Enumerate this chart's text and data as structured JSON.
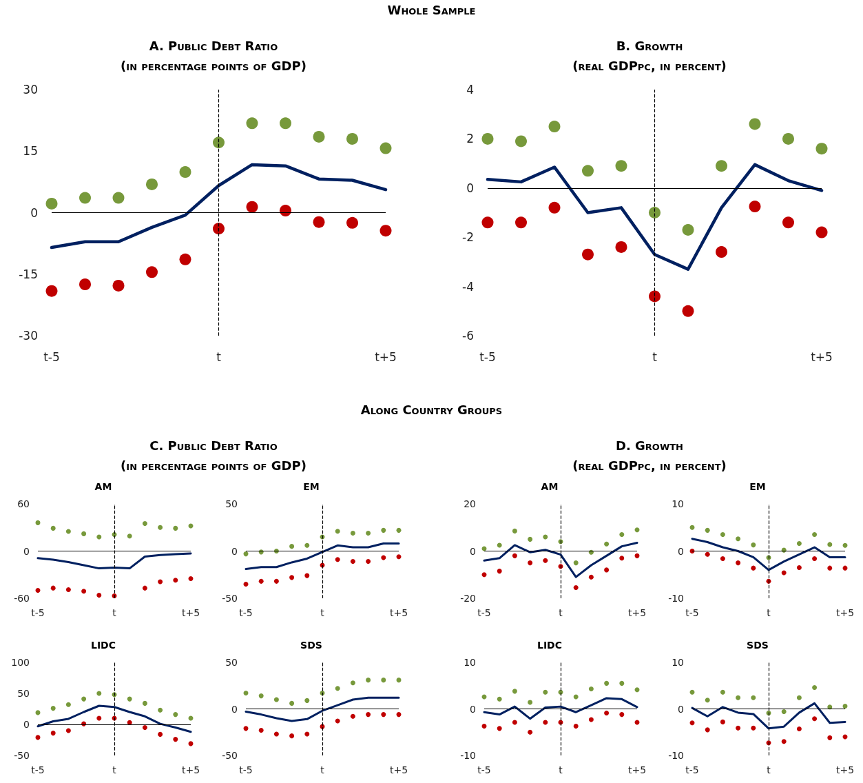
{
  "chart_data": [
    {
      "type": "line",
      "title": "A. Public Debt Ratio",
      "subtitle": "(in percentage points of GDP)",
      "annotations": [
        "Whole Sample"
      ],
      "categories": [
        "t-5",
        null,
        null,
        null,
        null,
        "t",
        null,
        null,
        null,
        null,
        "t+5"
      ],
      "ylim": [
        -30,
        30
      ],
      "yticks": [
        -30,
        -15,
        0,
        15,
        30
      ],
      "ref_lines": [
        {
          "axis": "y",
          "value": 0,
          "color": "#000000",
          "line_style": "solid"
        },
        {
          "axis": "x",
          "value": "t",
          "color": "#000000",
          "line_style": "dashed"
        }
      ],
      "series": [
        {
          "type": "scatter",
          "marker": "circle",
          "color": "#77993b",
          "values": [
            2.2,
            3.6,
            3.6,
            6.9,
            9.9,
            17.1,
            21.8,
            21.8,
            18.5,
            18,
            15.7
          ]
        },
        {
          "type": "line",
          "marker": "none",
          "line_style": "solid",
          "color": "#002060",
          "values": [
            -8.5,
            -7.1,
            -7.1,
            -3.6,
            -0.6,
            6.6,
            11.7,
            11.4,
            8.2,
            7.9,
            5.6
          ]
        },
        {
          "type": "scatter",
          "marker": "circle",
          "color": "#c00000",
          "values": [
            -19.1,
            -17.5,
            -17.8,
            -14.5,
            -11.4,
            -3.9,
            1.4,
            0.5,
            -2.3,
            -2.5,
            -4.4
          ]
        }
      ]
    },
    {
      "type": "line",
      "title": "B. Growth",
      "subtitle": "(real GDPpc, in percent)",
      "categories": [
        "t-5",
        null,
        null,
        null,
        null,
        "t",
        null,
        null,
        null,
        null,
        "t+5"
      ],
      "ylim": [
        -6,
        4
      ],
      "yticks": [
        -6,
        -4,
        -2,
        0,
        2,
        4
      ],
      "ref_lines": [
        {
          "axis": "y",
          "value": 0,
          "color": "#000000",
          "line_style": "solid"
        },
        {
          "axis": "x",
          "value": "t",
          "color": "#000000",
          "line_style": "dashed"
        }
      ],
      "series": [
        {
          "type": "scatter",
          "marker": "circle",
          "color": "#77993b",
          "values": [
            2.0,
            1.9,
            2.5,
            0.7,
            0.9,
            -1.0,
            -1.7,
            0.9,
            2.6,
            2.0,
            1.6
          ]
        },
        {
          "type": "line",
          "marker": "none",
          "line_style": "solid",
          "color": "#002060",
          "values": [
            0.35,
            0.25,
            0.85,
            -1.0,
            -0.8,
            -2.7,
            -3.3,
            -0.8,
            0.95,
            0.3,
            -0.1
          ]
        },
        {
          "type": "scatter",
          "marker": "circle",
          "color": "#c00000",
          "values": [
            -1.4,
            -1.4,
            -0.8,
            -2.7,
            -2.4,
            -4.4,
            -5.0,
            -2.6,
            -0.75,
            -1.4,
            -1.8
          ]
        }
      ]
    },
    {
      "type": "line",
      "title": "AM",
      "annotations": [
        "Along Country Groups",
        "C. Public Debt Ratio",
        "(in percentage points of GDP)"
      ],
      "categories": [
        "t-5",
        null,
        null,
        null,
        null,
        "t",
        null,
        null,
        null,
        null,
        "t+5"
      ],
      "ylim": [
        -60,
        60
      ],
      "yticks": [
        -60,
        0,
        60
      ],
      "ref_lines": [
        {
          "axis": "y",
          "value": 0,
          "color": "#000000",
          "line_style": "solid"
        },
        {
          "axis": "x",
          "value": "t",
          "color": "#000000",
          "line_style": "dashed"
        }
      ],
      "series": [
        {
          "type": "scatter",
          "marker": "circle",
          "color": "#77993b",
          "values": [
            36,
            29,
            25,
            22,
            18,
            21,
            19,
            35,
            30,
            29,
            32
          ]
        },
        {
          "type": "line",
          "marker": "none",
          "line_style": "solid",
          "color": "#002060",
          "values": [
            -9,
            -11,
            -14,
            -18,
            -22,
            -21,
            -22,
            -7,
            -5,
            -4,
            -3
          ]
        },
        {
          "type": "scatter",
          "marker": "circle",
          "color": "#c00000",
          "values": [
            -50,
            -47,
            -49,
            -51,
            -56,
            -57,
            null,
            -47,
            -39,
            -37,
            -35
          ]
        }
      ]
    },
    {
      "type": "line",
      "title": "EM",
      "categories": [
        "t-5",
        null,
        null,
        null,
        null,
        "t",
        null,
        null,
        null,
        null,
        "t+5"
      ],
      "ylim": [
        -50,
        50
      ],
      "yticks": [
        -50,
        0,
        50
      ],
      "ref_lines": [
        {
          "axis": "y",
          "value": 0,
          "color": "#000000",
          "line_style": "solid"
        },
        {
          "axis": "x",
          "value": "t",
          "color": "#000000",
          "line_style": "dashed"
        }
      ],
      "series": [
        {
          "type": "scatter",
          "marker": "circle",
          "color": "#77993b",
          "values": [
            -3,
            -1,
            0,
            5,
            6,
            15,
            21,
            19,
            19,
            22,
            22
          ]
        },
        {
          "type": "line",
          "marker": "none",
          "line_style": "solid",
          "color": "#002060",
          "values": [
            -19,
            -17,
            -17,
            -12,
            -8,
            -1,
            6,
            4,
            4,
            8,
            8
          ]
        },
        {
          "type": "scatter",
          "marker": "circle",
          "color": "#c00000",
          "values": [
            -35,
            -32,
            -32,
            -28,
            -26,
            -15,
            -9,
            -11,
            -11,
            -7,
            -6
          ]
        }
      ]
    },
    {
      "type": "line",
      "title": "AM",
      "annotations": [
        "D. Growth",
        "(real GDPpc, in percent)"
      ],
      "categories": [
        "t-5",
        null,
        null,
        null,
        null,
        "t",
        null,
        null,
        null,
        null,
        "t+5"
      ],
      "ylim": [
        -20,
        20
      ],
      "yticks": [
        -20,
        0,
        20
      ],
      "ref_lines": [
        {
          "axis": "y",
          "value": 0,
          "color": "#000000",
          "line_style": "solid"
        },
        {
          "axis": "x",
          "value": "t",
          "color": "#000000",
          "line_style": "dashed"
        }
      ],
      "series": [
        {
          "type": "scatter",
          "marker": "circle",
          "color": "#77993b",
          "values": [
            1,
            2.5,
            8.5,
            5,
            6,
            4,
            -5,
            -0.5,
            3,
            7,
            9
          ]
        },
        {
          "type": "line",
          "marker": "none",
          "line_style": "solid",
          "color": "#002060",
          "values": [
            -4,
            -3,
            2.5,
            -0.5,
            0.5,
            -1.5,
            -11,
            -6,
            -2,
            2,
            3.5
          ]
        },
        {
          "type": "scatter",
          "marker": "circle",
          "color": "#c00000",
          "values": [
            -10,
            -8.5,
            -2,
            -5,
            -4,
            -6.5,
            -15.5,
            -11,
            -8,
            -3,
            -2
          ]
        }
      ]
    },
    {
      "type": "line",
      "title": "EM",
      "categories": [
        "t-5",
        null,
        null,
        null,
        null,
        "t",
        null,
        null,
        null,
        null,
        "t+5"
      ],
      "ylim": [
        -10,
        10
      ],
      "yticks": [
        -10,
        0,
        10
      ],
      "ref_lines": [
        {
          "axis": "y",
          "value": 0,
          "color": "#000000",
          "line_style": "solid"
        },
        {
          "axis": "x",
          "value": "t",
          "color": "#000000",
          "line_style": "dashed"
        }
      ],
      "series": [
        {
          "type": "scatter",
          "marker": "circle",
          "color": "#77993b",
          "values": [
            5,
            4.4,
            3.5,
            2.6,
            1.3,
            -1.4,
            0.2,
            1.6,
            3.5,
            1.4,
            1.2
          ]
        },
        {
          "type": "line",
          "marker": "none",
          "line_style": "solid",
          "color": "#002060",
          "values": [
            2.6,
            1.9,
            0.8,
            0,
            -1.3,
            -4,
            -2.2,
            -0.7,
            0.8,
            -1.3,
            -1.3
          ]
        },
        {
          "type": "scatter",
          "marker": "circle",
          "color": "#c00000",
          "values": [
            0,
            -0.7,
            -1.6,
            -2.5,
            -3.6,
            -6.4,
            -4.6,
            -3.5,
            -1.6,
            -3.6,
            -3.6
          ]
        }
      ]
    },
    {
      "type": "line",
      "title": "LIDC",
      "categories": [
        "t-5",
        null,
        null,
        null,
        null,
        "t",
        null,
        null,
        null,
        null,
        "t+5"
      ],
      "ylim": [
        -50,
        100
      ],
      "yticks": [
        -50,
        0,
        50,
        100
      ],
      "ref_lines": [
        {
          "axis": "y",
          "value": 0,
          "color": "#000000",
          "line_style": "solid"
        },
        {
          "axis": "x",
          "value": "t",
          "color": "#000000",
          "line_style": "dashed"
        }
      ],
      "series": [
        {
          "type": "scatter",
          "marker": "circle",
          "color": "#77993b",
          "values": [
            19,
            26,
            32,
            41,
            50,
            48,
            41,
            34,
            23,
            16,
            10
          ]
        },
        {
          "type": "line",
          "marker": "none",
          "line_style": "solid",
          "color": "#002060",
          "values": [
            -3,
            5,
            9,
            20,
            30,
            28,
            20,
            13,
            1,
            -5,
            -12
          ]
        },
        {
          "type": "scatter",
          "marker": "circle",
          "color": "#c00000",
          "values": [
            -21,
            -14,
            -10,
            1,
            10,
            10,
            3,
            -5,
            -16,
            -24,
            -31
          ]
        }
      ]
    },
    {
      "type": "line",
      "title": "SDS",
      "categories": [
        "t-5",
        null,
        null,
        null,
        null,
        "t",
        null,
        null,
        null,
        null,
        "t+5"
      ],
      "ylim": [
        -50,
        50
      ],
      "yticks": [
        -50,
        0,
        50
      ],
      "ref_lines": [
        {
          "axis": "y",
          "value": 0,
          "color": "#000000",
          "line_style": "solid"
        },
        {
          "axis": "x",
          "value": "t",
          "color": "#000000",
          "line_style": "dashed"
        }
      ],
      "series": [
        {
          "type": "scatter",
          "marker": "circle",
          "color": "#77993b",
          "values": [
            17,
            14,
            10,
            6,
            9,
            17,
            22,
            28,
            31,
            31,
            31
          ]
        },
        {
          "type": "line",
          "marker": "none",
          "line_style": "solid",
          "color": "#002060",
          "values": [
            -3,
            -6,
            -10,
            -13,
            -11,
            -2,
            4,
            10,
            12,
            12,
            12
          ]
        },
        {
          "type": "scatter",
          "marker": "circle",
          "color": "#c00000",
          "values": [
            -21,
            -23,
            -27,
            -29,
            -27,
            -19,
            -13,
            -8,
            -6,
            -6,
            -6
          ]
        }
      ]
    },
    {
      "type": "line",
      "title": "LIDC",
      "categories": [
        "t-5",
        null,
        null,
        null,
        null,
        "t",
        null,
        null,
        null,
        null,
        "t+5"
      ],
      "ylim": [
        -10,
        10
      ],
      "yticks": [
        -10,
        0,
        10
      ],
      "ref_lines": [
        {
          "axis": "y",
          "value": 0,
          "color": "#000000",
          "line_style": "solid"
        },
        {
          "axis": "x",
          "value": "t",
          "color": "#000000",
          "line_style": "dashed"
        }
      ],
      "series": [
        {
          "type": "scatter",
          "marker": "circle",
          "color": "#77993b",
          "values": [
            2.6,
            2.1,
            3.8,
            1.4,
            3.6,
            3.6,
            2.6,
            4.3,
            5.5,
            5.5,
            4.1
          ]
        },
        {
          "type": "line",
          "marker": "none",
          "line_style": "solid",
          "color": "#002060",
          "values": [
            -0.7,
            -1.2,
            0.5,
            -2.1,
            0.3,
            0.5,
            -0.7,
            0.8,
            2.3,
            2.1,
            0.4
          ]
        },
        {
          "type": "scatter",
          "marker": "circle",
          "color": "#c00000",
          "values": [
            -3.7,
            -4.2,
            -2.9,
            -5,
            -2.9,
            -2.9,
            -3.7,
            -2.3,
            -0.9,
            -1.2,
            -2.9
          ]
        }
      ]
    },
    {
      "type": "line",
      "title": "SDS",
      "categories": [
        "t-5",
        null,
        null,
        null,
        null,
        "t",
        null,
        null,
        null,
        null,
        "t+5"
      ],
      "ylim": [
        -10,
        10
      ],
      "yticks": [
        -10,
        0,
        10
      ],
      "ref_lines": [
        {
          "axis": "y",
          "value": 0,
          "color": "#000000",
          "line_style": "solid"
        },
        {
          "axis": "x",
          "value": "t",
          "color": "#000000",
          "line_style": "dashed"
        }
      ],
      "series": [
        {
          "type": "scatter",
          "marker": "circle",
          "color": "#77993b",
          "values": [
            3.6,
            1.9,
            3.6,
            2.4,
            2.4,
            -0.9,
            -0.6,
            2.4,
            4.6,
            0.4,
            0.6
          ]
        },
        {
          "type": "line",
          "marker": "none",
          "line_style": "solid",
          "color": "#002060",
          "values": [
            0.2,
            -1.6,
            0.4,
            -0.8,
            -1.1,
            -4.2,
            -3.8,
            -0.8,
            1.2,
            -3,
            -2.8
          ]
        },
        {
          "type": "scatter",
          "marker": "circle",
          "color": "#c00000",
          "values": [
            -3,
            -4.5,
            -2.8,
            -4.1,
            -4.1,
            -7.3,
            -7,
            -4.3,
            -2.1,
            -6.2,
            -6
          ]
        }
      ]
    }
  ]
}
